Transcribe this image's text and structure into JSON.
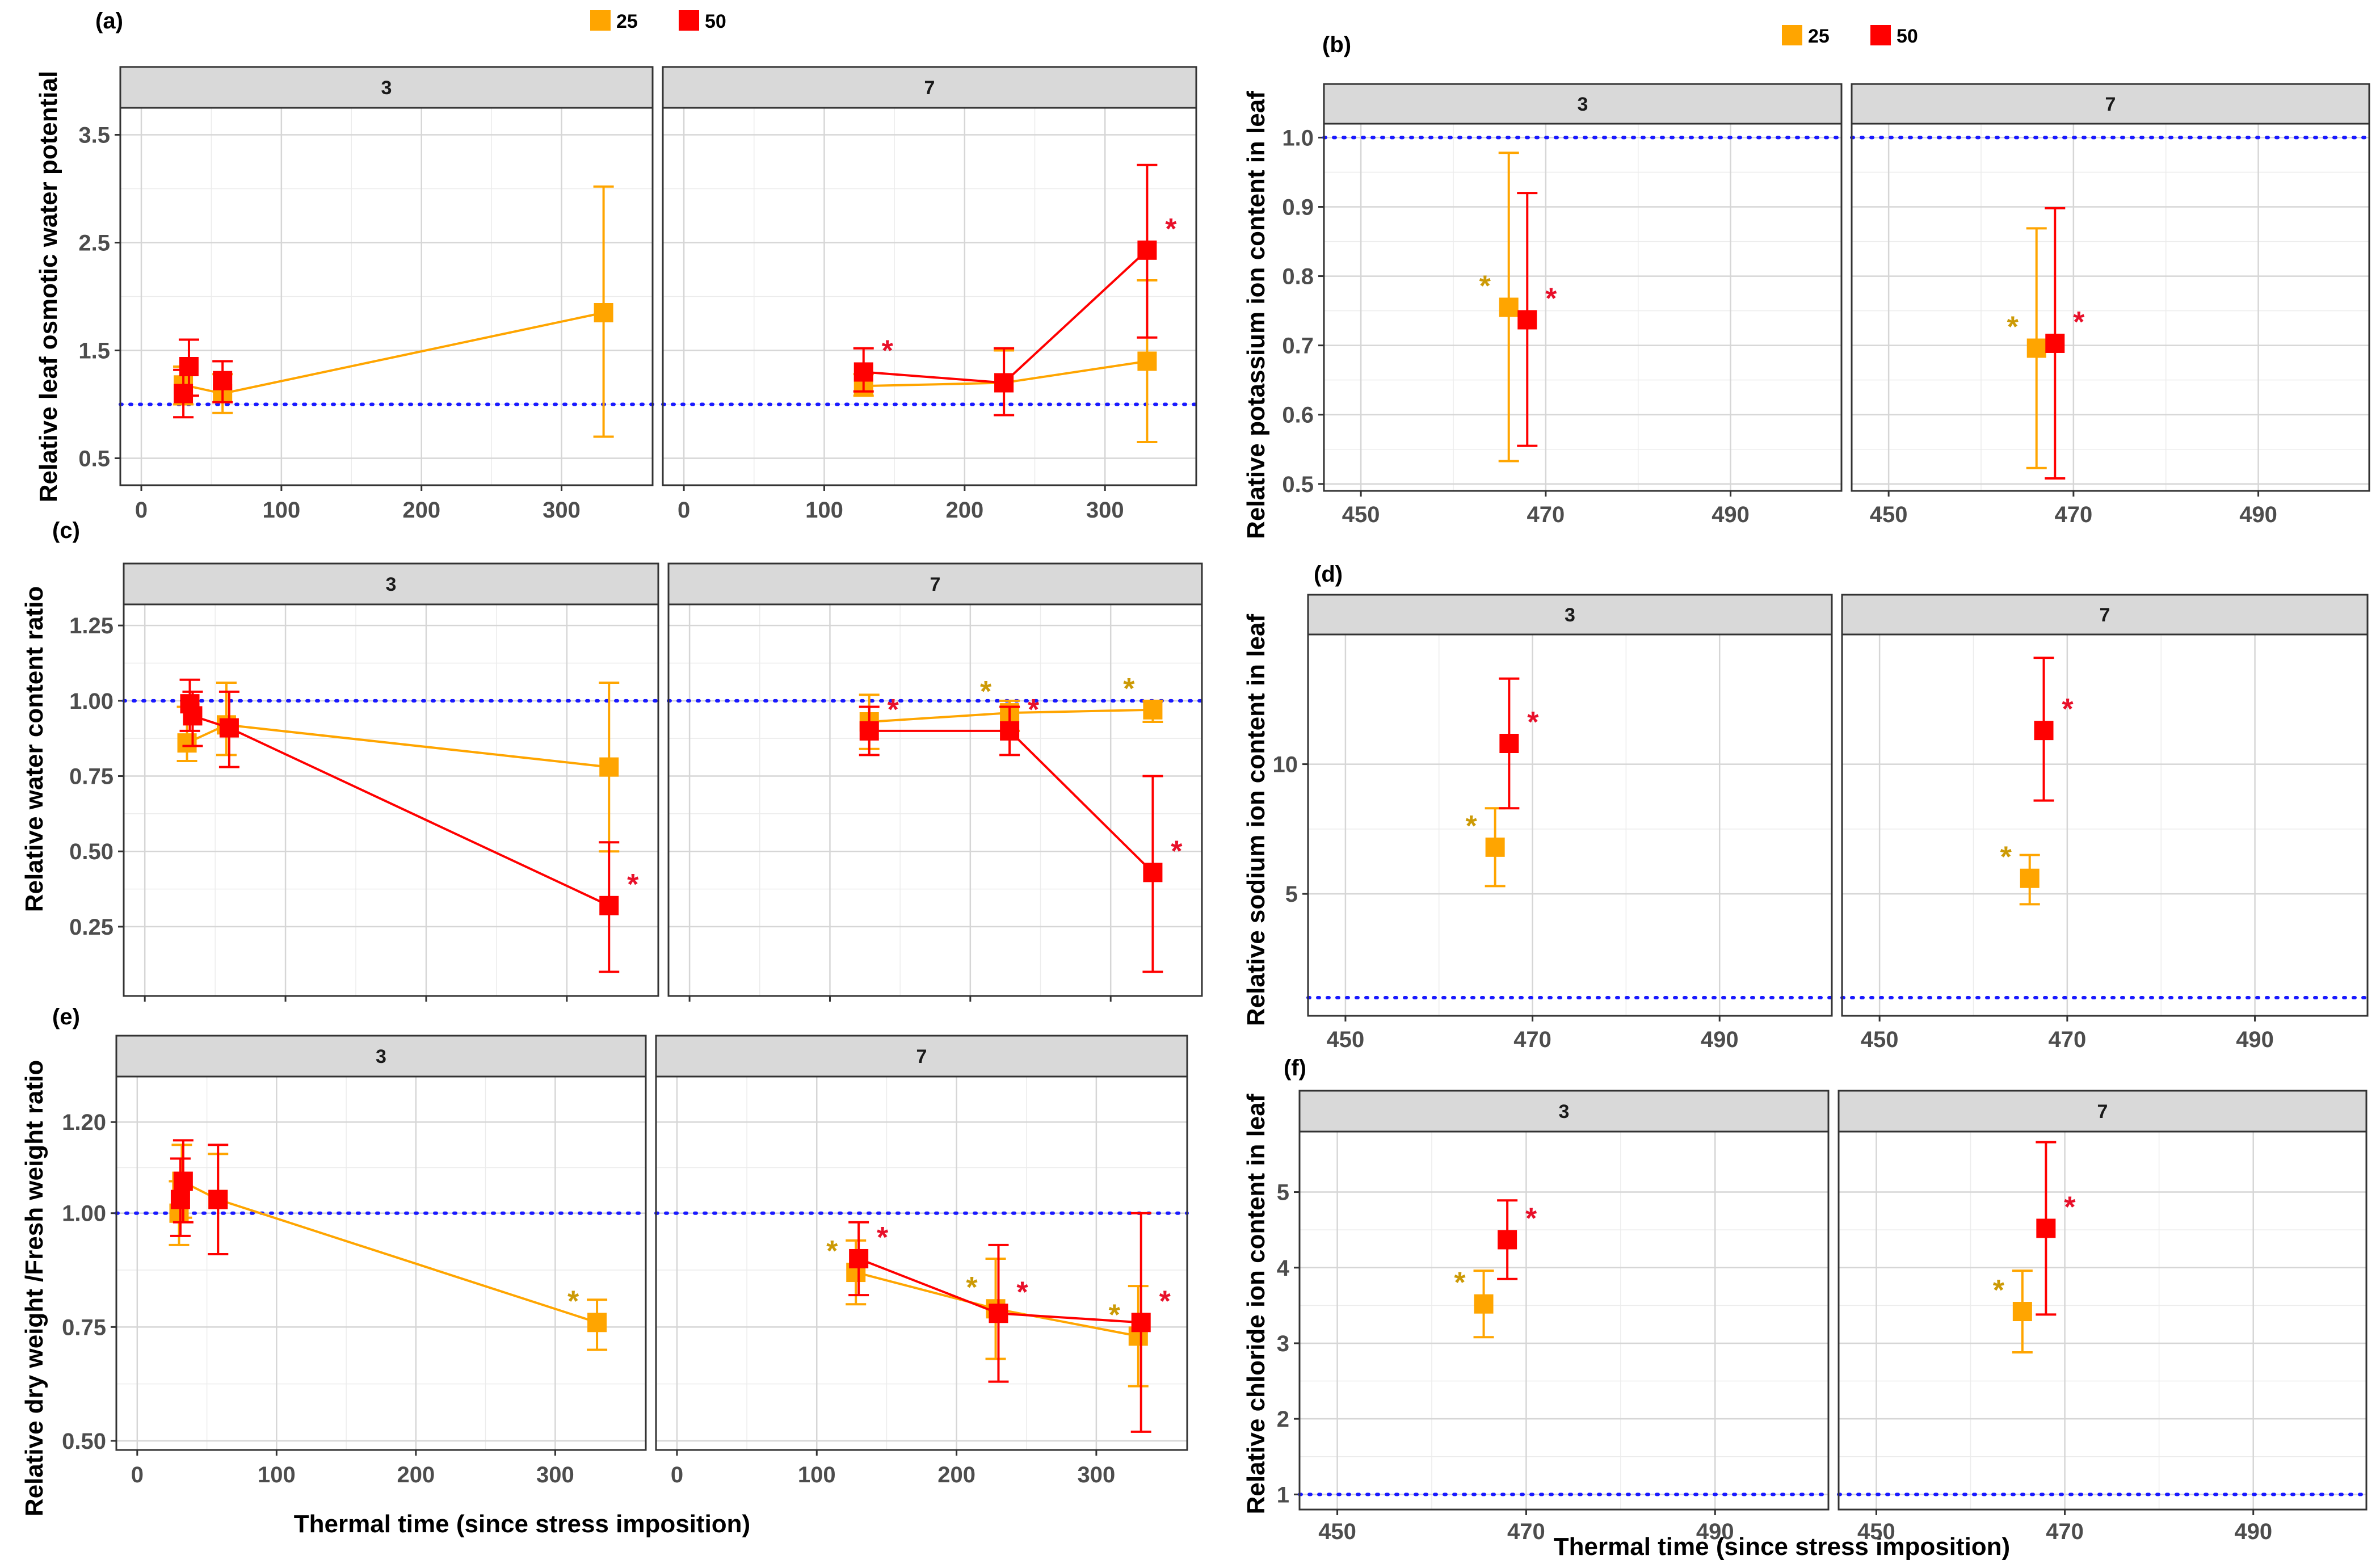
{
  "legend": {
    "items": [
      {
        "label": "25",
        "color": "#FFA500"
      },
      {
        "label": "50",
        "color": "#FF0000"
      }
    ]
  },
  "colors": {
    "25": "#FFA500",
    "50": "#FF0000",
    "reference": "#1a1aff",
    "star25": "#CC9A06",
    "star50": "#E8102A"
  },
  "shared_xlabel": "Thermal time (since stress imposition)",
  "chart_data": [
    {
      "id": "a",
      "panel_label": "(a)",
      "type": "line",
      "ylabel": "Relative leaf osmotic water potential",
      "xlim": [
        -15,
        365
      ],
      "ylim": [
        0.25,
        3.75
      ],
      "xticks": [
        0,
        100,
        200,
        300
      ],
      "yticks": [
        0.5,
        1.5,
        2.5,
        3.5
      ],
      "reference_y": 1.0,
      "facets": [
        {
          "label": "3",
          "show_x_ticklabels": true,
          "series": [
            {
              "name": "25",
              "x": [
                30,
                58,
                330
              ],
              "y": [
                1.18,
                1.1,
                1.85
              ],
              "ymin": [
                1.0,
                0.92,
                0.7
              ],
              "ymax": [
                1.35,
                1.28,
                3.02
              ],
              "stars": [
                false,
                false,
                false
              ],
              "connect": true
            },
            {
              "name": "50",
              "x": [
                30,
                34,
                58
              ],
              "y": [
                1.1,
                1.35,
                1.22
              ],
              "ymin": [
                0.88,
                1.08,
                1.02
              ],
              "ymax": [
                1.32,
                1.6,
                1.4
              ],
              "stars": [
                false,
                false,
                false
              ],
              "connect": false
            }
          ]
        },
        {
          "label": "7",
          "show_x_ticklabels": true,
          "series": [
            {
              "name": "25",
              "x": [
                128,
                228,
                330
              ],
              "y": [
                1.17,
                1.2,
                1.4
              ],
              "ymin": [
                1.08,
                0.9,
                0.65
              ],
              "ymax": [
                1.28,
                1.5,
                2.15
              ],
              "stars": [
                false,
                false,
                false
              ],
              "connect": true
            },
            {
              "name": "50",
              "x": [
                128,
                228,
                330
              ],
              "y": [
                1.3,
                1.2,
                2.43
              ],
              "ymin": [
                1.12,
                0.9,
                1.62
              ],
              "ymax": [
                1.52,
                1.52,
                3.22
              ],
              "stars": [
                true,
                false,
                true
              ],
              "connect": true
            }
          ]
        }
      ]
    },
    {
      "id": "b",
      "panel_label": "(b)",
      "type": "scatter",
      "ylabel": "Relative potassium ion content in leaf",
      "xlim": [
        446,
        502
      ],
      "ylim": [
        0.49,
        1.02
      ],
      "xticks": [
        450,
        470,
        490
      ],
      "yticks": [
        0.5,
        0.6,
        0.7,
        0.8,
        0.9,
        1.0
      ],
      "reference_y": 1.0,
      "facets": [
        {
          "label": "3",
          "show_x_ticklabels": true,
          "series": [
            {
              "name": "25",
              "x": [
                466
              ],
              "y": [
                0.755
              ],
              "ymin": [
                0.533
              ],
              "ymax": [
                0.978
              ],
              "stars": [
                true
              ],
              "connect": false
            },
            {
              "name": "50",
              "x": [
                468
              ],
              "y": [
                0.737
              ],
              "ymin": [
                0.555
              ],
              "ymax": [
                0.92
              ],
              "stars": [
                true
              ],
              "connect": false
            }
          ]
        },
        {
          "label": "7",
          "show_x_ticklabels": true,
          "series": [
            {
              "name": "25",
              "x": [
                466
              ],
              "y": [
                0.696
              ],
              "ymin": [
                0.523
              ],
              "ymax": [
                0.869
              ],
              "stars": [
                true
              ],
              "connect": false
            },
            {
              "name": "50",
              "x": [
                468
              ],
              "y": [
                0.703
              ],
              "ymin": [
                0.508
              ],
              "ymax": [
                0.898
              ],
              "stars": [
                true
              ],
              "connect": false
            }
          ]
        }
      ]
    },
    {
      "id": "c",
      "panel_label": "(c)",
      "type": "line",
      "ylabel": "Relative water content ratio",
      "xlim": [
        -15,
        365
      ],
      "ylim": [
        0.02,
        1.32
      ],
      "xticks": [
        0,
        100,
        200,
        300
      ],
      "yticks": [
        0.25,
        0.5,
        0.75,
        1.0,
        1.25
      ],
      "reference_y": 1.0,
      "facets": [
        {
          "label": "3",
          "show_x_ticklabels": false,
          "series": [
            {
              "name": "25",
              "x": [
                30,
                58,
                330
              ],
              "y": [
                0.86,
                0.92,
                0.78
              ],
              "ymin": [
                0.8,
                0.82,
                0.5
              ],
              "ymax": [
                0.98,
                1.06,
                1.06
              ],
              "stars": [
                false,
                false,
                false
              ],
              "connect": true
            },
            {
              "name": "50",
              "x": [
                32,
                34,
                60,
                330
              ],
              "y": [
                0.99,
                0.95,
                0.91,
                0.32
              ],
              "ymin": [
                0.9,
                0.85,
                0.78,
                0.1
              ],
              "ymax": [
                1.07,
                1.03,
                1.03,
                0.53
              ],
              "stars": [
                false,
                false,
                false,
                true
              ],
              "connect": true
            }
          ]
        },
        {
          "label": "7",
          "show_x_ticklabels": false,
          "series": [
            {
              "name": "25",
              "x": [
                128,
                228,
                330
              ],
              "y": [
                0.93,
                0.96,
                0.97
              ],
              "ymin": [
                0.84,
                0.9,
                0.93
              ],
              "ymax": [
                1.02,
                1.0,
                1.0
              ],
              "stars": [
                false,
                true,
                true
              ],
              "connect": true
            },
            {
              "name": "50",
              "x": [
                128,
                228,
                330
              ],
              "y": [
                0.9,
                0.9,
                0.43
              ],
              "ymin": [
                0.82,
                0.82,
                0.1
              ],
              "ymax": [
                0.98,
                0.98,
                0.75
              ],
              "stars": [
                true,
                true,
                true
              ],
              "connect": true
            }
          ]
        }
      ]
    },
    {
      "id": "d",
      "panel_label": "(d)",
      "type": "scatter",
      "ylabel": "Relative sodium ion content in leaf",
      "xlim": [
        446,
        502
      ],
      "ylim": [
        0.3,
        15.0
      ],
      "xticks": [
        450,
        470,
        490
      ],
      "yticks": [
        5,
        10
      ],
      "reference_y": 1.0,
      "facets": [
        {
          "label": "3",
          "show_x_ticklabels": true,
          "series": [
            {
              "name": "25",
              "x": [
                466
              ],
              "y": [
                6.8
              ],
              "ymin": [
                5.3
              ],
              "ymax": [
                8.3
              ],
              "stars": [
                true
              ],
              "connect": false
            },
            {
              "name": "50",
              "x": [
                467.5
              ],
              "y": [
                10.8
              ],
              "ymin": [
                8.3
              ],
              "ymax": [
                13.3
              ],
              "stars": [
                true
              ],
              "connect": false
            }
          ]
        },
        {
          "label": "7",
          "show_x_ticklabels": true,
          "series": [
            {
              "name": "25",
              "x": [
                466
              ],
              "y": [
                5.6
              ],
              "ymin": [
                4.6
              ],
              "ymax": [
                6.5
              ],
              "stars": [
                true
              ],
              "connect": false
            },
            {
              "name": "50",
              "x": [
                467.5
              ],
              "y": [
                11.3
              ],
              "ymin": [
                8.6
              ],
              "ymax": [
                14.1
              ],
              "stars": [
                true
              ],
              "connect": false
            }
          ]
        }
      ]
    },
    {
      "id": "e",
      "panel_label": "(e)",
      "type": "line",
      "ylabel": "Relative dry weight /Fresh weight ratio",
      "xlim": [
        -15,
        365
      ],
      "ylim": [
        0.48,
        1.3
      ],
      "xticks": [
        0,
        100,
        200,
        300
      ],
      "yticks": [
        0.5,
        0.75,
        1.0,
        1.2
      ],
      "ytick_labels": [
        "0.50",
        "0.75",
        "1.00",
        "1.20"
      ],
      "reference_y": 1.0,
      "facets": [
        {
          "label": "3",
          "show_x_ticklabels": true,
          "series": [
            {
              "name": "25",
              "x": [
                30,
                32,
                58,
                330
              ],
              "y": [
                1.0,
                1.07,
                1.03,
                0.76
              ],
              "ymin": [
                0.93,
                0.99,
                0.91,
                0.7
              ],
              "ymax": [
                1.07,
                1.15,
                1.13,
                0.81
              ],
              "stars": [
                false,
                false,
                false,
                true
              ],
              "connect": true
            },
            {
              "name": "50",
              "x": [
                31,
                33,
                58
              ],
              "y": [
                1.03,
                1.07,
                1.03
              ],
              "ymin": [
                0.95,
                0.98,
                0.91
              ],
              "ymax": [
                1.12,
                1.16,
                1.15
              ],
              "stars": [
                false,
                false,
                false
              ],
              "connect": false
            }
          ]
        },
        {
          "label": "7",
          "show_x_ticklabels": true,
          "series": [
            {
              "name": "25",
              "x": [
                128,
                228,
                330
              ],
              "y": [
                0.87,
                0.79,
                0.73
              ],
              "ymin": [
                0.8,
                0.68,
                0.62
              ],
              "ymax": [
                0.94,
                0.9,
                0.84
              ],
              "stars": [
                true,
                true,
                true
              ],
              "connect": true
            },
            {
              "name": "50",
              "x": [
                130,
                230,
                332
              ],
              "y": [
                0.9,
                0.78,
                0.76
              ],
              "ymin": [
                0.82,
                0.63,
                0.52
              ],
              "ymax": [
                0.98,
                0.93,
                1.0
              ],
              "stars": [
                true,
                true,
                true
              ],
              "connect": true
            }
          ]
        }
      ]
    },
    {
      "id": "f",
      "panel_label": "(f)",
      "type": "scatter",
      "ylabel": "Relative chloride ion content in leaf",
      "xlim": [
        446,
        502
      ],
      "ylim": [
        0.8,
        5.8
      ],
      "xticks": [
        450,
        470,
        490
      ],
      "yticks": [
        1,
        2,
        3,
        4,
        5
      ],
      "reference_y": 1.0,
      "facets": [
        {
          "label": "3",
          "show_x_ticklabels": true,
          "series": [
            {
              "name": "25",
              "x": [
                465.5
              ],
              "y": [
                3.52
              ],
              "ymin": [
                3.08
              ],
              "ymax": [
                3.96
              ],
              "stars": [
                true
              ],
              "connect": false
            },
            {
              "name": "50",
              "x": [
                468
              ],
              "y": [
                4.37
              ],
              "ymin": [
                3.85
              ],
              "ymax": [
                4.89
              ],
              "stars": [
                true
              ],
              "connect": false
            }
          ]
        },
        {
          "label": "7",
          "show_x_ticklabels": true,
          "series": [
            {
              "name": "25",
              "x": [
                465.5
              ],
              "y": [
                3.42
              ],
              "ymin": [
                2.88
              ],
              "ymax": [
                3.96
              ],
              "stars": [
                true
              ],
              "connect": false
            },
            {
              "name": "50",
              "x": [
                468
              ],
              "y": [
                4.52
              ],
              "ymin": [
                3.38
              ],
              "ymax": [
                5.66
              ],
              "stars": [
                true
              ],
              "connect": false
            }
          ]
        }
      ]
    }
  ]
}
